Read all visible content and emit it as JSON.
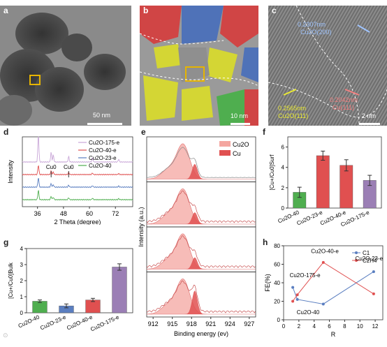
{
  "panel_labels": {
    "a": "a",
    "b": "b",
    "c": "c",
    "d": "d",
    "e": "e",
    "f": "f",
    "g": "g",
    "h": "h"
  },
  "panel_a": {
    "scale_bar": "50 nm"
  },
  "panel_b": {
    "scale_bar": "10 nm"
  },
  "panel_c": {
    "annotations": [
      "0.2307nm",
      "Cu2O(200)",
      "0.2565nm",
      "Cu2O(111)",
      "0.2042nm",
      "Cu(111)"
    ],
    "scale_bar": "2 nm"
  },
  "colors": {
    "red": "#e05050",
    "blue": "#5a7ec0",
    "yellow": "#d7d93a",
    "green": "#4fae4f",
    "purple": "#9b7fb5",
    "salmon": "#f4a6a0"
  },
  "chart_data": [
    {
      "panel": "d",
      "type": "line",
      "xlabel": "2 Theta (degree)",
      "ylabel": "Intensity",
      "xticks": [
        36,
        48,
        60,
        72
      ],
      "xlim": [
        29,
        80
      ],
      "series": [
        {
          "name": "Cu2O-175-e",
          "color": "#c9a7d8"
        },
        {
          "name": "Cu2O-40-e",
          "color": "#e05050"
        },
        {
          "name": "Cu2O-23-e",
          "color": "#5a7ec0"
        },
        {
          "name": "Cu2O-40",
          "color": "#4fae4f"
        }
      ],
      "peak_labels": [
        "Cu0",
        "Cu0"
      ],
      "peaks": [
        {
          "x": 36.4,
          "h": 1.0
        },
        {
          "x": 42.3,
          "h": 0.35
        },
        {
          "x": 43.3,
          "h": 0.25
        },
        {
          "x": 50.4,
          "h": 0.2
        },
        {
          "x": 61.4,
          "h": 0.15
        },
        {
          "x": 73.5,
          "h": 0.1
        }
      ]
    },
    {
      "panel": "e",
      "type": "area",
      "xlabel": "Binding energy (ev)",
      "ylabel": "Intensity (a.u.)",
      "xticks": [
        912,
        915,
        918,
        921,
        924,
        927
      ],
      "xlim": [
        911,
        928
      ],
      "legend": [
        "Cu2O",
        "Cu"
      ],
      "subplots": 4
    },
    {
      "panel": "f",
      "type": "bar",
      "ylabel": "[Cu+/Cu0]Surf",
      "categories": [
        "Cu2O-40",
        "Cu2O-23-e",
        "Cu2O-40-e",
        "Cu2O-175-e"
      ],
      "values": [
        1.55,
        5.15,
        4.2,
        2.72
      ],
      "errors": [
        0.5,
        0.45,
        0.55,
        0.5
      ],
      "colors": [
        "#4fae4f",
        "#e05050",
        "#e05050",
        "#9b7fb5"
      ],
      "ylim": [
        0,
        7
      ],
      "yticks": [
        0,
        2,
        4,
        6
      ]
    },
    {
      "panel": "g",
      "type": "bar",
      "ylabel": "[Cu+/Cu0]Bulk",
      "categories": [
        "Cu2O-40",
        "Cu2O-23-e",
        "Cu2O-40-e",
        "Cu2O-175-e"
      ],
      "values": [
        0.72,
        0.43,
        0.8,
        2.85
      ],
      "errors": [
        0.08,
        0.12,
        0.1,
        0.2
      ],
      "colors": [
        "#4fae4f",
        "#5a7ec0",
        "#e05050",
        "#9b7fb5"
      ],
      "ylim": [
        0,
        4
      ],
      "yticks": [
        0,
        1,
        2,
        3,
        4
      ]
    },
    {
      "panel": "h",
      "type": "line",
      "xlabel": "R",
      "ylabel": "FE(%)",
      "xlim": [
        0,
        13
      ],
      "ylim": [
        0,
        80
      ],
      "xticks": [
        0,
        2,
        4,
        6,
        8,
        10,
        12
      ],
      "yticks": [
        0,
        20,
        40,
        60,
        80
      ],
      "x": [
        1.2,
        1.8,
        5.2,
        11.8
      ],
      "series": [
        {
          "name": "C1",
          "color": "#5a7ec0",
          "values": [
            35,
            22,
            17,
            52
          ]
        },
        {
          "name": "C2H4",
          "color": "#e05050",
          "values": [
            20,
            27,
            62,
            28
          ]
        }
      ],
      "annotations": [
        "Cu2O-40-e",
        "Cu2O-23-e",
        "Cu2O-175-e",
        "Cu2O-40"
      ]
    }
  ]
}
